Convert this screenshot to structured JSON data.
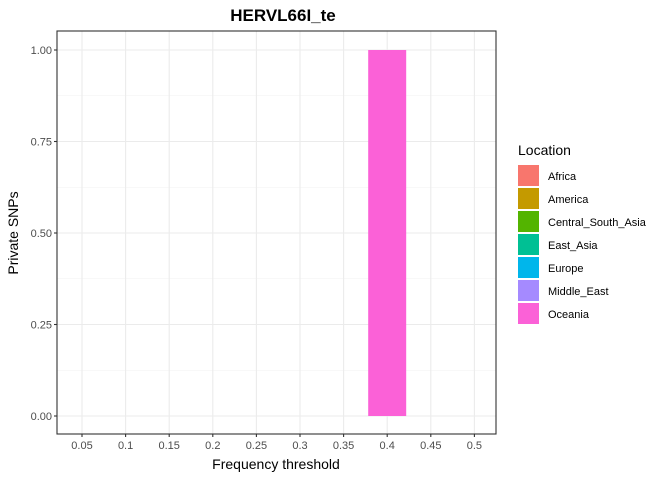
{
  "chart_data": {
    "type": "bar",
    "title": "HERVL66I_te",
    "xlabel": "Frequency threshold",
    "ylabel": "Private SNPs",
    "categories": [
      "0.05",
      "0.1",
      "0.15",
      "0.2",
      "0.25",
      "0.3",
      "0.35",
      "0.4",
      "0.45",
      "0.5"
    ],
    "y_ticks": [
      "0.00",
      "0.25",
      "0.50",
      "0.75",
      "1.00"
    ],
    "ylim": [
      0,
      1
    ],
    "grid": true,
    "legend_position": "right",
    "legend_title": "Location",
    "series": [
      {
        "name": "Africa",
        "color": "#F8766D",
        "values": [
          0,
          0,
          0,
          0,
          0,
          0,
          0,
          0,
          0,
          0
        ]
      },
      {
        "name": "America",
        "color": "#C49A00",
        "values": [
          0,
          0,
          0,
          0,
          0,
          0,
          0,
          0,
          0,
          0
        ]
      },
      {
        "name": "Central_South_Asia",
        "color": "#53B400",
        "values": [
          0,
          0,
          0,
          0,
          0,
          0,
          0,
          0,
          0,
          0
        ]
      },
      {
        "name": "East_Asia",
        "color": "#00C094",
        "values": [
          0,
          0,
          0,
          0,
          0,
          0,
          0,
          0,
          0,
          0
        ]
      },
      {
        "name": "Europe",
        "color": "#00B6EB",
        "values": [
          0,
          0,
          0,
          0,
          0,
          0,
          0,
          0,
          0,
          0
        ]
      },
      {
        "name": "Middle_East",
        "color": "#A58AFF",
        "values": [
          0,
          0,
          0,
          0,
          0,
          0,
          0,
          0,
          0,
          0
        ]
      },
      {
        "name": "Oceania",
        "color": "#FB61D7",
        "values": [
          0,
          0,
          0,
          0,
          0,
          0,
          0,
          1,
          0,
          0
        ]
      }
    ]
  }
}
